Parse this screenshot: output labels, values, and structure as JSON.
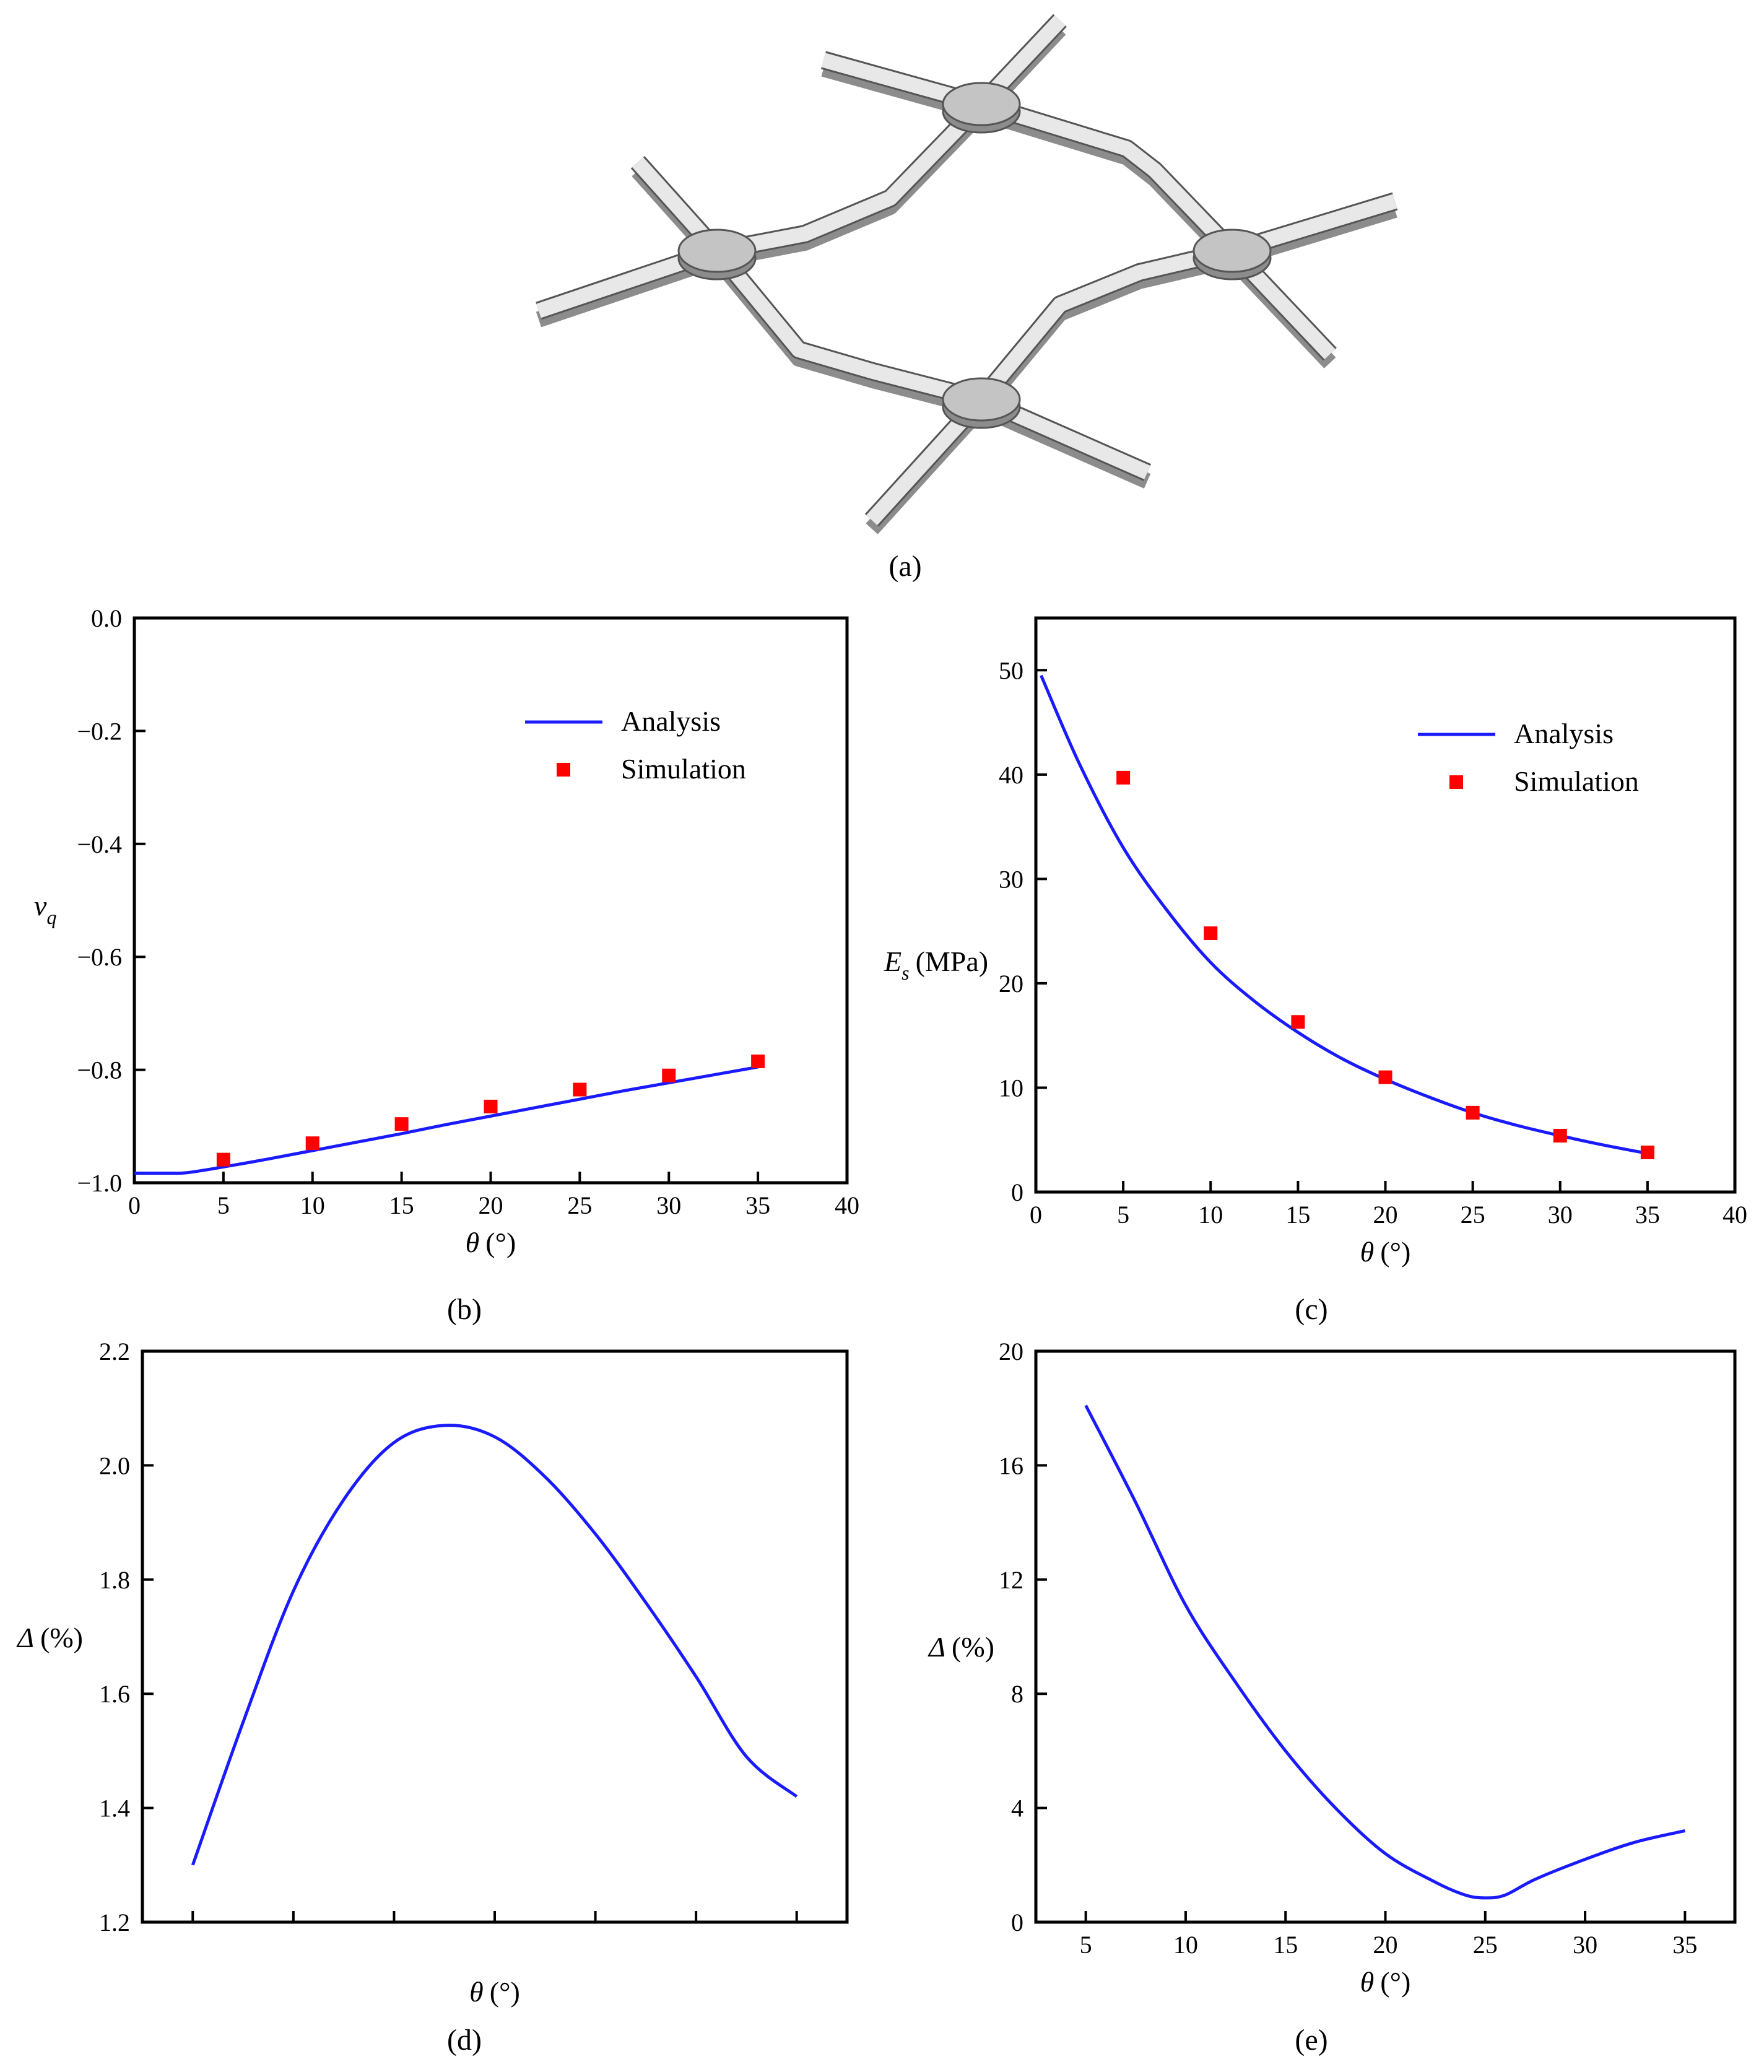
{
  "captions": {
    "a": "(a)",
    "b": "(b)",
    "c": "(c)",
    "d": "(d)",
    "e": "(e)"
  },
  "colors": {
    "analysis": "#1a1aff",
    "simulation": "#ff0000",
    "model_light": "#e8e8e8",
    "model_mid": "#c4c4c4",
    "model_dark": "#8c8c8c"
  },
  "illustration": {
    "name": "re-entrant-auxetic-unit-cell-3d-model"
  },
  "chart_data": [
    {
      "id": "b",
      "type": "line",
      "ylabel_symbol": "ν",
      "ylabel_sub": "q",
      "xlabel_symbol": "θ",
      "xlabel_unit": "(°)",
      "xlim": [
        0,
        40
      ],
      "ylim": [
        -1.0,
        0.0
      ],
      "xticks": [
        0,
        5,
        10,
        15,
        20,
        25,
        30,
        35,
        40
      ],
      "xtick_labels": [
        "0",
        "5",
        "10",
        "15",
        "20",
        "25",
        "30",
        "35",
        "40"
      ],
      "yticks": [
        0.0,
        -0.2,
        -0.4,
        -0.6,
        -0.8,
        -1.0
      ],
      "ytick_labels": [
        "0.0",
        "−0.2",
        "−0.4",
        "−0.6",
        "−0.8",
        "−1.0"
      ],
      "legend_position": "top-right",
      "series": [
        {
          "name": "Analysis",
          "kind": "line",
          "x": [
            0,
            1,
            2,
            3,
            5,
            7.5,
            10,
            12.5,
            15,
            17.5,
            20,
            22.5,
            25,
            27.5,
            30,
            32.5,
            35
          ],
          "y": [
            -0.983,
            -0.983,
            -0.983,
            -0.982,
            -0.972,
            -0.958,
            -0.943,
            -0.928,
            -0.913,
            -0.897,
            -0.882,
            -0.867,
            -0.852,
            -0.837,
            -0.823,
            -0.809,
            -0.795
          ]
        },
        {
          "name": "Simulation",
          "kind": "scatter",
          "x": [
            5,
            10,
            15,
            20,
            25,
            30,
            35
          ],
          "y": [
            -0.959,
            -0.93,
            -0.896,
            -0.865,
            -0.835,
            -0.81,
            -0.785
          ]
        }
      ]
    },
    {
      "id": "c",
      "type": "line",
      "ylabel_symbol": "E",
      "ylabel_sub": "s",
      "ylabel_unit": "(MPa)",
      "xlabel_symbol": "θ",
      "xlabel_unit": "(°)",
      "xlim": [
        0,
        40
      ],
      "ylim": [
        0,
        55
      ],
      "xticks": [
        0,
        5,
        10,
        15,
        20,
        25,
        30,
        35,
        40
      ],
      "xtick_labels": [
        "0",
        "5",
        "10",
        "15",
        "20",
        "25",
        "30",
        "35",
        "40"
      ],
      "yticks": [
        0,
        10,
        20,
        30,
        40,
        50
      ],
      "ytick_labels": [
        "0",
        "10",
        "20",
        "30",
        "40",
        "50"
      ],
      "legend_position": "top-right",
      "series": [
        {
          "name": "Analysis",
          "kind": "line",
          "x": [
            0.3,
            2.5,
            5,
            7.5,
            10,
            12.5,
            15,
            17.5,
            20,
            22.5,
            25,
            27.5,
            30,
            32.5,
            35
          ],
          "y": [
            49.5,
            41.0,
            33.0,
            27.0,
            22.0,
            18.3,
            15.3,
            12.8,
            10.8,
            9.1,
            7.6,
            6.4,
            5.4,
            4.5,
            3.7
          ]
        },
        {
          "name": "Simulation",
          "kind": "scatter",
          "x": [
            5,
            10,
            15,
            20,
            25,
            30,
            35
          ],
          "y": [
            39.7,
            24.8,
            16.3,
            11.0,
            7.6,
            5.4,
            3.8
          ]
        }
      ]
    },
    {
      "id": "d",
      "type": "line",
      "ylabel_symbol": "Δ",
      "ylabel_unit": "(%)",
      "xlabel_symbol": "θ",
      "xlabel_unit": "(°)",
      "xlim": [
        2.5,
        37.5
      ],
      "ylim": [
        1.2,
        2.2
      ],
      "xticks": [
        5,
        10,
        15,
        20,
        25,
        30,
        35
      ],
      "xtick_labels": [],
      "yticks": [
        1.2,
        1.4,
        1.6,
        1.8,
        2.0,
        2.2
      ],
      "ytick_labels": [
        "1.2",
        "1.4",
        "1.6",
        "1.8",
        "2.0",
        "2.2"
      ],
      "series": [
        {
          "name": "",
          "kind": "line",
          "x": [
            5,
            7.5,
            10,
            12.5,
            15,
            17.5,
            20,
            22.5,
            25,
            27.5,
            30,
            32.5,
            35
          ],
          "y": [
            1.3,
            1.55,
            1.78,
            1.94,
            2.04,
            2.07,
            2.05,
            1.98,
            1.88,
            1.76,
            1.63,
            1.49,
            1.42
          ]
        }
      ]
    },
    {
      "id": "e",
      "type": "line",
      "ylabel_symbol": "Δ",
      "ylabel_unit": "(%)",
      "xlabel_symbol": "θ",
      "xlabel_unit": "(°)",
      "xlim": [
        2.5,
        37.5
      ],
      "ylim": [
        0,
        20
      ],
      "xticks": [
        5,
        10,
        15,
        20,
        25,
        30,
        35
      ],
      "xtick_labels": [
        "5",
        "10",
        "15",
        "20",
        "25",
        "30",
        "35"
      ],
      "yticks": [
        0,
        4,
        8,
        12,
        16,
        20
      ],
      "ytick_labels": [
        "0",
        "4",
        "8",
        "12",
        "16",
        "20"
      ],
      "series": [
        {
          "name": "",
          "kind": "line",
          "x": [
            5,
            7.5,
            10,
            12.5,
            15,
            17.5,
            20,
            22.5,
            24,
            25,
            26,
            27.5,
            30,
            32.5,
            35
          ],
          "y": [
            18.1,
            14.7,
            11.1,
            8.4,
            6.0,
            4.0,
            2.4,
            1.4,
            0.95,
            0.85,
            0.95,
            1.5,
            2.2,
            2.8,
            3.2
          ]
        }
      ]
    }
  ]
}
